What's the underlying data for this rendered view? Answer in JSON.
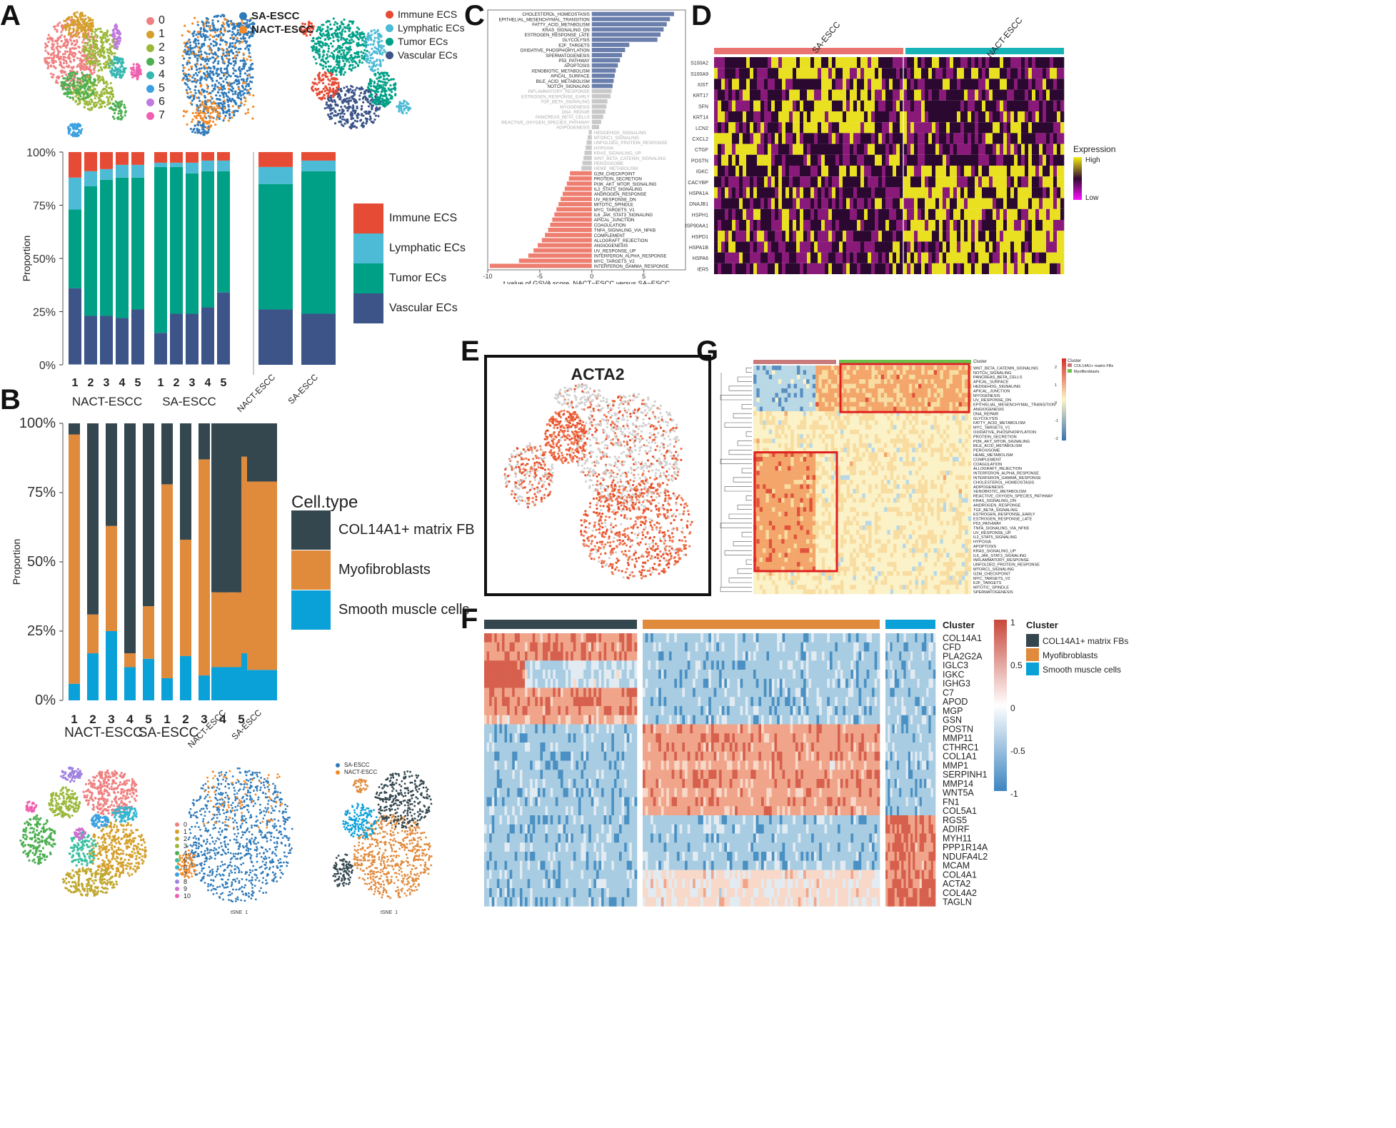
{
  "panel_letters": {
    "A": "A",
    "B": "B",
    "C": "C",
    "D": "D",
    "E": "E",
    "F": "F",
    "G": "G"
  },
  "colors": {
    "immune": "#e64b35",
    "lymphatic": "#4dbbd5",
    "tumor": "#00a087",
    "vascular": "#3c5488",
    "col14a1": "#34474f",
    "myo": "#e08a3c",
    "smooth": "#0aa0d8",
    "gsva_pos": "#6b7fad",
    "gsva_neg": "#ee7e70",
    "gsva_ns": "#c9c9c9",
    "sa": "#e87370",
    "nact": "#17b3b7"
  },
  "panelA": {
    "cluster_legend": [
      "0",
      "1",
      "2",
      "3",
      "4",
      "5",
      "6",
      "7"
    ],
    "cluster_colors": [
      "#f08080",
      "#d4a02a",
      "#9bb83a",
      "#4caf50",
      "#36b6b0",
      "#3aa0e0",
      "#c07ae0",
      "#ef5fb0"
    ],
    "group_legend": [
      "SA-ESCC",
      "NACT-ESCC"
    ],
    "group_colors": [
      "#2f7ab9",
      "#f28a28"
    ],
    "celltype_legend": [
      "Immune ECS",
      "Lymphatic ECs",
      "Tumor ECs",
      "Vascular ECs"
    ],
    "big_legend": [
      "Immune ECS",
      "Lymphatic ECs",
      "Tumor ECs",
      "Vascular ECs"
    ],
    "ylabel": "Proportion",
    "yticks": [
      "100%",
      "75%",
      "50%",
      "25%",
      "0%"
    ],
    "sample_ticks": [
      "1",
      "2",
      "3",
      "4",
      "5",
      "1",
      "2",
      "3",
      "4",
      "5"
    ],
    "group_labels": [
      "NACT-ESCC",
      "SA-ESCC"
    ],
    "summary_ticks": [
      "NACT-ESCC",
      "SA-ESCC"
    ]
  },
  "panelB": {
    "ylabel": "Proportion",
    "yticks": [
      "100%",
      "75%",
      "50%",
      "25%",
      "0%"
    ],
    "sample_ticks": [
      "1",
      "2",
      "3",
      "4",
      "5",
      "1",
      "2",
      "3",
      "4",
      "5"
    ],
    "group_labels": [
      "NACT-ESCC",
      "SA-ESCC"
    ],
    "summary_ticks": [
      "NACT-ESCC",
      "SA-ESCC"
    ],
    "legend_title": "Cell.type",
    "legend": [
      "COL14A1+ matrix FB",
      "Myofibroblasts",
      "Smooth muscle cells"
    ],
    "tsne_cluster_legend": [
      "0",
      "1",
      "2",
      "3",
      "4",
      "5",
      "6",
      "7",
      "8",
      "9",
      "10"
    ],
    "tsne_group_legend": [
      "SA-ESCC",
      "NACT-ESCC"
    ],
    "tsne_type_legend": [
      "COL14A1+ matrix FBs",
      "Myofibroblasts",
      "Smooth muscle cells"
    ],
    "tsne_xlabel": "tSNE_1",
    "tsne_ylabel": "tSNE_2"
  },
  "panelC": {
    "xlabel": "t value of GSVA score, NACT−ESCC versus SA−ESCC",
    "xticks": [
      "-10",
      "-5",
      "0",
      "5"
    ]
  },
  "panelD": {
    "groups": [
      "SA-ESCC",
      "NACT-ESCC"
    ],
    "genes": [
      "S100A2",
      "S100A9",
      "XIST",
      "KRT17",
      "SFN",
      "KRT14",
      "LCN2",
      "CXCL2",
      "CTGF",
      "POSTN",
      "IGKC",
      "CACYBP",
      "HSPA1A",
      "DNAJB1",
      "HSPH1",
      "HSP90AA1",
      "HSPD1",
      "HSPA1B",
      "HSPA6",
      "IER5"
    ],
    "legend_title": "Expression",
    "legend_high": "High",
    "legend_low": "Low"
  },
  "panelE": {
    "title": "ACTA2"
  },
  "panelF": {
    "genes": [
      "COL14A1",
      "CFD",
      "PLA2G2A",
      "IGLC3",
      "IGKC",
      "IGHG3",
      "C7",
      "APOD",
      "MGP",
      "GSN",
      "POSTN",
      "MMP11",
      "CTHRC1",
      "COL1A1",
      "MMP1",
      "SERPINH1",
      "MMP14",
      "WNT5A",
      "FN1",
      "COL5A1",
      "RGS5",
      "ADIRF",
      "MYH11",
      "PPP1R14A",
      "NDUFA4L2",
      "MCAM",
      "COL4A1",
      "ACTA2",
      "COL4A2",
      "TAGLN"
    ],
    "col_title": "Cluster",
    "scale_ticks": [
      "1",
      "0.5",
      "0",
      "-0.5",
      "-1"
    ],
    "legend_title": "Cluster",
    "legend": [
      "COL14A1+ matrix FBs",
      "Myofibroblasts",
      "Smooth muscle cells"
    ]
  },
  "panelG": {
    "col_title": "Cluster",
    "legend": [
      "COL14A1+ matrix FBs",
      "Myofibroblasts"
    ],
    "scale_ticks": [
      "2",
      "1",
      "0",
      "-1",
      "-2"
    ],
    "pathways": [
      "WNT_BETA_CATENIN_SIGNALING",
      "NOTCH_SIGNALING",
      "PANCREAS_BETA_CELLS",
      "APICAL_SURFACE",
      "HEDGEHOG_SIGNALING",
      "APICAL_JUNCTION",
      "MYOGENESIS",
      "UV_RESPONSE_DN",
      "EPITHELIAL_MESENCHYMAL_TRANSITION",
      "ANGIOGENESIS",
      "DNA_REPAIR",
      "GLYCOLYSIS",
      "FATTY_ACID_METABOLISM",
      "MYC_TARGETS_V1",
      "OXIDATIVE_PHOSPHORYLATION",
      "PROTEIN_SECRETION",
      "PI3K_AKT_MTOR_SIGNALING",
      "BILE_ACID_METABOLISM",
      "PEROXISOME",
      "HEME_METABOLISM",
      "COMPLEMENT",
      "COAGULATION",
      "ALLOGRAFT_REJECTION",
      "INTERFERON_ALPHA_RESPONSE",
      "INTERFERON_GAMMA_RESPONSE",
      "CHOLESTEROL_HOMEOSTASIS",
      "ADIPOGENESIS",
      "XENOBIOTIC_METABOLISM",
      "REACTIVE_OXYGEN_SPECIES_PATHWAY",
      "KRAS_SIGNALING_DN",
      "ANDROGEN_RESPONSE",
      "TGF_BETA_SIGNALING",
      "ESTROGEN_RESPONSE_EARLY",
      "ESTROGEN_RESPONSE_LATE",
      "P53_PATHWAY",
      "TNFA_SIGNALING_VIA_NFKB",
      "UV_RESPONSE_UP",
      "IL2_STAT5_SIGNALING",
      "HYPOXIA",
      "APOPTOSIS",
      "KRAS_SIGNALING_UP",
      "IL6_JAK_STAT3_SIGNALING",
      "INFLAMMATORY_RESPONSE",
      "UNFOLDED_PROTEIN_RESPONSE",
      "MTORC1_SIGNALING",
      "G2M_CHECKPOINT",
      "MYC_TARGETS_V2",
      "E2F_TARGETS",
      "MITOTIC_SPINDLE",
      "SPERMATOGENESIS"
    ]
  },
  "chart_data": [
    {
      "type": "bar",
      "panel": "A",
      "stacked": true,
      "categories": [
        "1",
        "2",
        "3",
        "4",
        "5",
        "1",
        "2",
        "3",
        "4",
        "5",
        "NACT-ESCC",
        "SA-ESCC"
      ],
      "series": [
        {
          "name": "Vascular ECs",
          "values": [
            36,
            23,
            23,
            22,
            26,
            15,
            24,
            24,
            27,
            34,
            26,
            24
          ]
        },
        {
          "name": "Tumor ECs",
          "values": [
            37,
            61,
            64,
            66,
            62,
            78,
            69,
            66,
            64,
            57,
            59,
            67
          ]
        },
        {
          "name": "Lymphatic ECs",
          "values": [
            15,
            7,
            5,
            6,
            6,
            2,
            2,
            5,
            5,
            5,
            8,
            5
          ]
        },
        {
          "name": "Immune ECS",
          "values": [
            12,
            9,
            8,
            6,
            6,
            5,
            5,
            5,
            4,
            4,
            7,
            4
          ]
        }
      ],
      "ylabel": "Proportion",
      "ylim": [
        0,
        100
      ]
    },
    {
      "type": "bar",
      "panel": "B",
      "stacked": true,
      "categories": [
        "1",
        "2",
        "3",
        "4",
        "5",
        "1",
        "2",
        "3",
        "4",
        "5",
        "NACT-ESCC",
        "SA-ESCC"
      ],
      "series": [
        {
          "name": "Smooth muscle cells",
          "values": [
            6,
            17,
            25,
            12,
            15,
            8,
            16,
            9,
            16,
            17,
            12,
            11
          ]
        },
        {
          "name": "Myofibroblasts",
          "values": [
            90,
            14,
            38,
            5,
            19,
            70,
            42,
            78,
            70,
            71,
            27,
            68
          ]
        },
        {
          "name": "COL14A1+ matrix FB",
          "values": [
            4,
            69,
            37,
            83,
            66,
            22,
            42,
            13,
            14,
            12,
            61,
            21
          ]
        }
      ],
      "ylabel": "Proportion",
      "ylim": [
        0,
        100
      ]
    },
    {
      "type": "bar",
      "panel": "C",
      "orientation": "horizontal",
      "categories": [
        "CHOLESTEROL_HOMEOSTASIS",
        "EPITHELIAL_MESENCHYMAL_TRANSITION",
        "FATTY_ACID_METABOLISM",
        "KRAS_SIGNALING_DN",
        "ESTROGEN_RESPONSE_LATE",
        "GLYCOLYSIS",
        "E2F_TARGETS",
        "OXIDATIVE_PHOSPHORYLATION",
        "SPERMATOGENESIS",
        "P53_PATHWAY",
        "APOPTOSIS",
        "XENOBIOTIC_METABOLISM",
        "APICAL_SURFACE",
        "BILE_ACID_METABOLISM",
        "NOTCH_SIGNALING",
        "INFLAMMATORY_RESPONSE",
        "ESTROGEN_RESPONSE_EARLY",
        "TGF_BETA_SIGNALING",
        "MYOGENESIS",
        "DNA_REPAIR",
        "PANCREAS_BETA_CELLS",
        "REACTIVE_OXYGEN_SPECIES_PATHWAY",
        "ADIPOGENESIS",
        "HEDGEHOG_SIGNALING",
        "MTORC1_SIGNALING",
        "UNFOLDED_PROTEIN_RESPONSE",
        "HYPOXIA",
        "KRAS_SIGNALING_UP",
        "WNT_BETA_CATENIN_SIGNALING",
        "PEROXISOME",
        "HEME_METABOLISM",
        "G2M_CHECKPOINT",
        "PROTEIN_SECRETION",
        "PI3K_AKT_MTOR_SIGNALING",
        "IL2_STAT5_SIGNALING",
        "ANDROGEN_RESPONSE",
        "UV_RESPONSE_DN",
        "MITOTIC_SPINDLE",
        "MYC_TARGETS_V1",
        "IL6_JAK_STAT3_SIGNALING",
        "APICAL_JUNCTION",
        "COAGULATION",
        "TNFA_SIGNALING_VIA_NFKB",
        "COMPLEMENT",
        "ALLOGRAFT_REJECTION",
        "ANGIOGENESIS",
        "UV_RESPONSE_UP",
        "INTERFERON_ALPHA_RESPONSE",
        "MYC_TARGETS_V2",
        "INTERFERON_GAMMA_RESPONSE"
      ],
      "values": [
        7.9,
        7.5,
        7.2,
        6.9,
        6.6,
        6.3,
        3.6,
        3.2,
        2.9,
        2.7,
        2.5,
        2.3,
        2.2,
        2.1,
        2.0,
        1.9,
        1.8,
        1.5,
        1.4,
        1.3,
        1.1,
        0.9,
        0.7,
        -0.3,
        -0.4,
        -0.5,
        -0.6,
        -0.7,
        -0.8,
        -0.9,
        -1.0,
        -2.1,
        -2.2,
        -2.4,
        -2.6,
        -2.8,
        -3.0,
        -3.2,
        -3.4,
        -3.6,
        -3.8,
        -4.0,
        -4.2,
        -4.5,
        -4.8,
        -5.2,
        -5.6,
        -6.1,
        -7.0,
        -9.8
      ],
      "xlabel": "t value of GSVA score, NACT−ESCC versus SA−ESCC",
      "xlim": [
        -10,
        9
      ]
    }
  ]
}
